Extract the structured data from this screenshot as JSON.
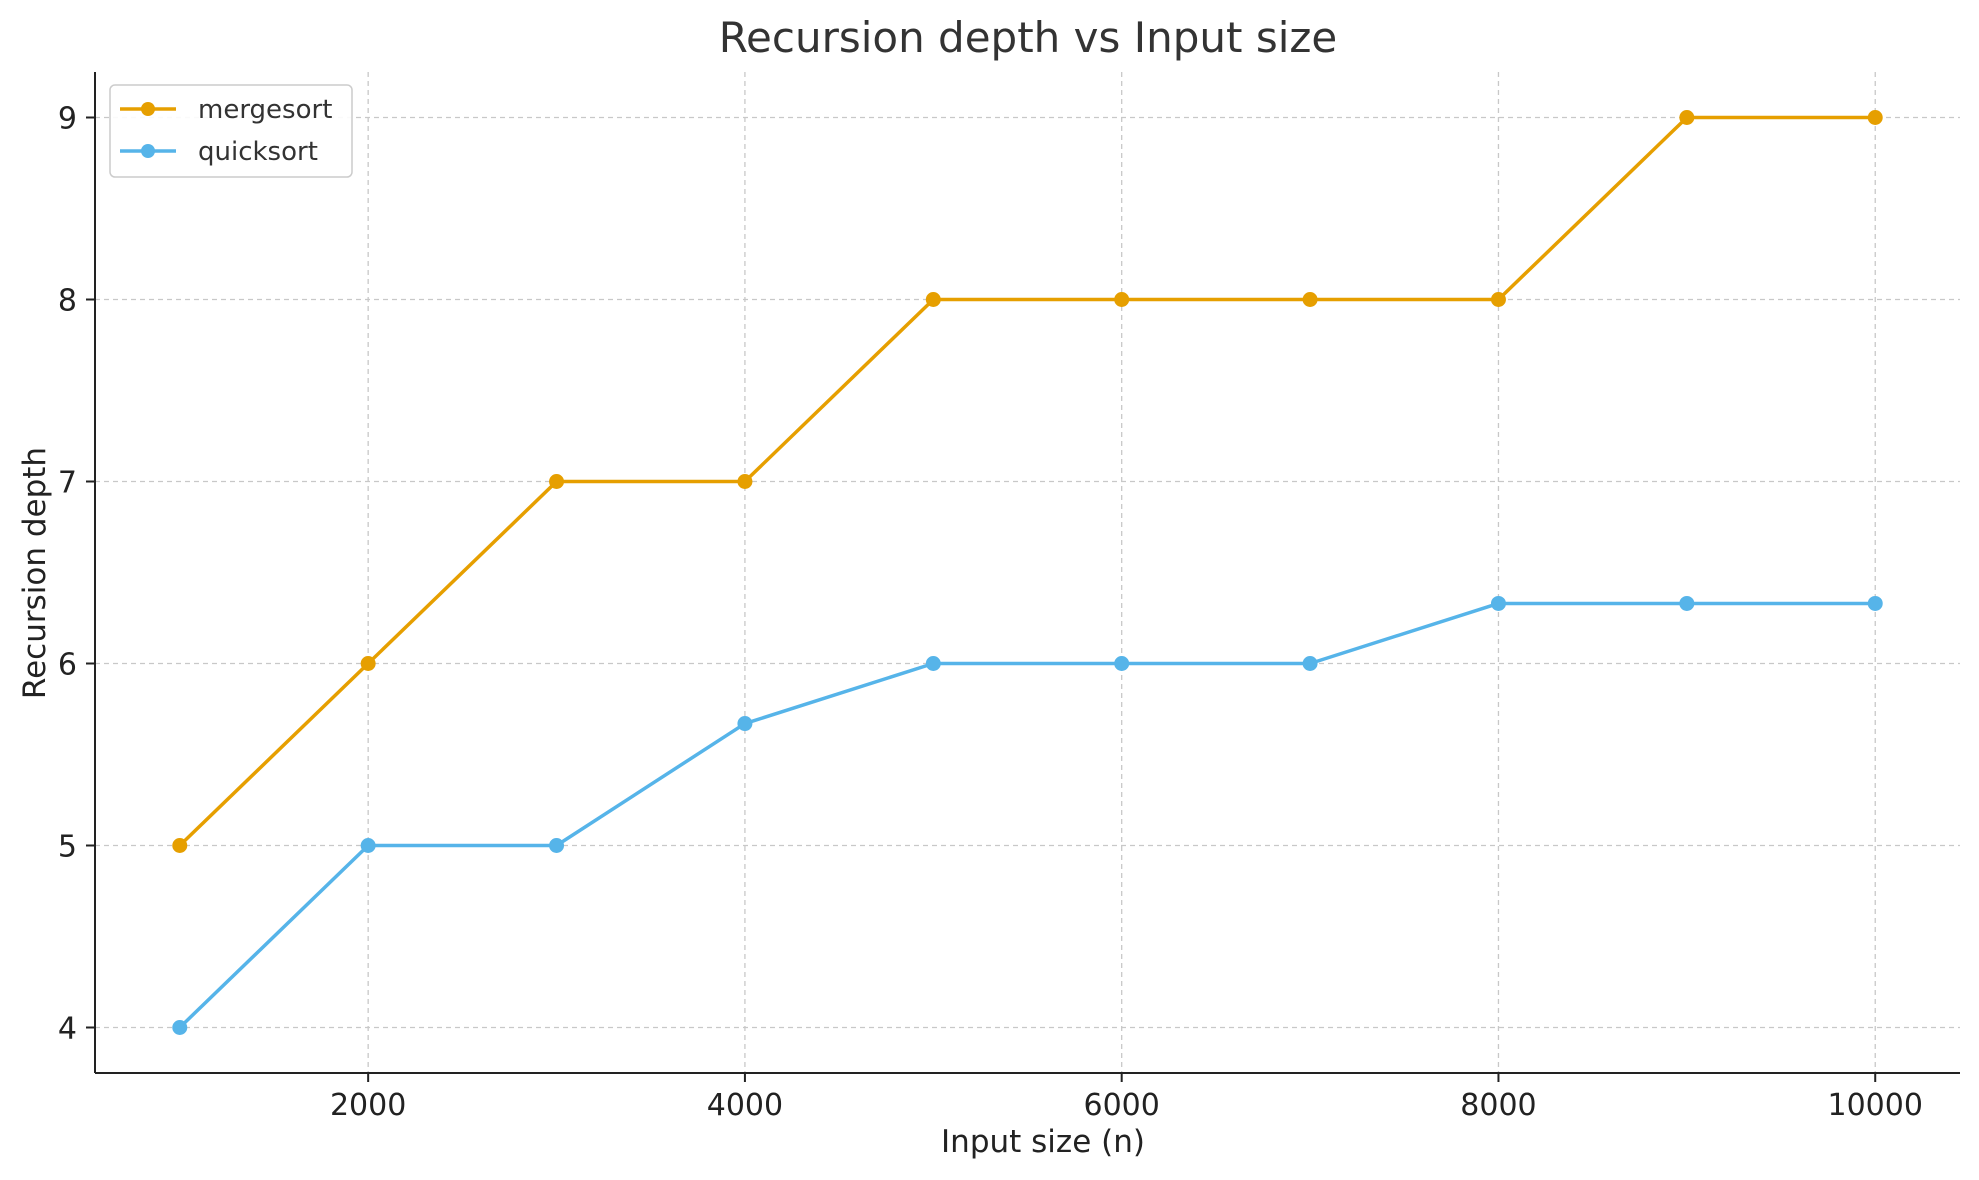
{
  "chart_data": {
    "type": "line",
    "title": "Recursion depth vs Input size",
    "xlabel": "Input size (n)",
    "ylabel": "Recursion depth",
    "x": [
      1000,
      2000,
      3000,
      4000,
      5000,
      6000,
      7000,
      8000,
      9000,
      10000
    ],
    "xlim": [
      550,
      10450
    ],
    "ylim": [
      3.75,
      9.25
    ],
    "xticks": [
      2000,
      4000,
      6000,
      8000,
      10000
    ],
    "yticks": [
      4,
      5,
      6,
      7,
      8,
      9
    ],
    "xtick_labels": [
      "2000",
      "4000",
      "6000",
      "8000",
      "10000"
    ],
    "ytick_labels": [
      "4",
      "5",
      "6",
      "7",
      "8",
      "9"
    ],
    "grid": true,
    "legend_position": "top-left",
    "series": [
      {
        "name": "mergesort",
        "color": "#E69F00",
        "values": [
          5,
          6,
          7,
          7,
          8,
          8,
          8,
          8,
          9,
          9
        ]
      },
      {
        "name": "quicksort",
        "color": "#56B4E9",
        "values": [
          4,
          5,
          5,
          5.67,
          6,
          6,
          6,
          6.33,
          6.33,
          6.33
        ]
      }
    ]
  }
}
